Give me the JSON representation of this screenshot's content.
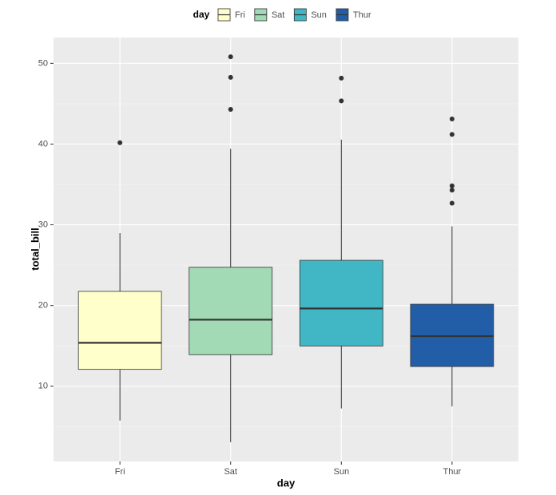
{
  "chart_data": {
    "type": "boxplot",
    "x_label": "day",
    "y_label": "total_bill",
    "legend_title": "day",
    "legend_position": "top",
    "categories": [
      "Fri",
      "Sat",
      "Sun",
      "Thur"
    ],
    "series": [
      {
        "name": "Fri",
        "color": "#ffffcc",
        "min": 5.75,
        "q1": 12.09,
        "median": 15.38,
        "q3": 21.75,
        "max": 28.97,
        "outliers": [
          40.17
        ]
      },
      {
        "name": "Sat",
        "color": "#a1dab4",
        "min": 3.07,
        "q1": 13.91,
        "median": 18.24,
        "q3": 24.74,
        "max": 39.42,
        "outliers": [
          44.3,
          48.27,
          50.81
        ]
      },
      {
        "name": "Sun",
        "color": "#41b6c4",
        "min": 7.25,
        "q1": 14.99,
        "median": 19.63,
        "q3": 25.6,
        "max": 40.55,
        "outliers": [
          45.35,
          48.17
        ]
      },
      {
        "name": "Thur",
        "color": "#225ea8",
        "min": 7.51,
        "q1": 12.44,
        "median": 16.2,
        "q3": 20.16,
        "max": 29.8,
        "outliers": [
          32.68,
          34.3,
          34.83,
          41.19,
          43.11
        ]
      }
    ],
    "ylim": [
      0.68,
      53.2
    ],
    "yticks": [
      10,
      20,
      30,
      40,
      50
    ],
    "minor_yticks": [
      5,
      15,
      25,
      35,
      45
    ],
    "grid": true
  }
}
